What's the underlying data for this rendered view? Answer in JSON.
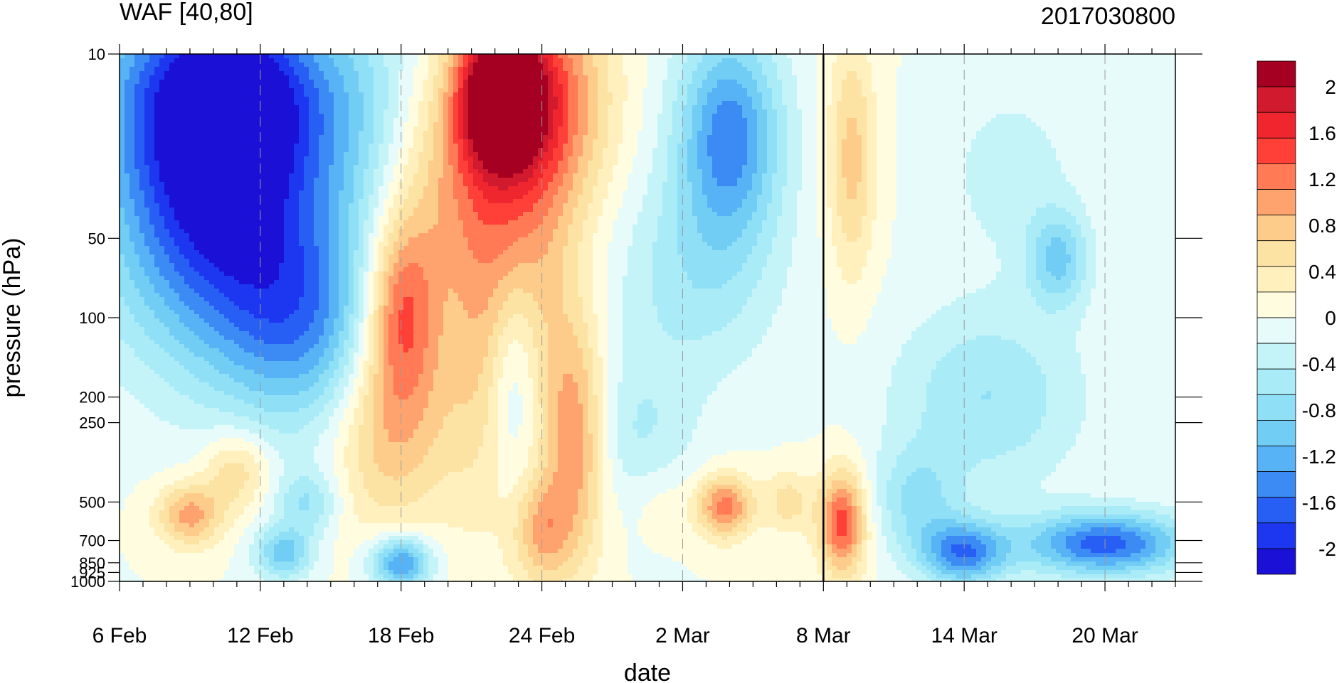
{
  "chart_data": {
    "type": "heatmap",
    "title": "WAF [40,80]",
    "subtitle": "2017030800",
    "xlabel": "date",
    "ylabel": "pressure (hPa)",
    "x_ticks": [
      "6 Feb",
      "12 Feb",
      "18 Feb",
      "24 Feb",
      "2 Mar",
      "8 Mar",
      "14 Mar",
      "20 Mar"
    ],
    "x_tick_days": [
      0,
      6,
      12,
      18,
      24,
      30,
      36,
      42
    ],
    "x_range_days": [
      0,
      45
    ],
    "y_scale": "log",
    "y_ticks": [
      "10",
      "50",
      "100",
      "200",
      "250",
      "500",
      "700",
      "850",
      "925",
      "1000"
    ],
    "y_tick_values": [
      10,
      50,
      100,
      200,
      250,
      500,
      700,
      850,
      925,
      1000
    ],
    "ylim": [
      1000,
      10
    ],
    "marker_day": 30,
    "colorbar": {
      "levels": [
        -2,
        -1.8,
        -1.6,
        -1.4,
        -1.2,
        -1,
        -0.8,
        -0.6,
        -0.4,
        -0.2,
        0,
        0.2,
        0.4,
        0.6,
        0.8,
        1,
        1.2,
        1.4,
        1.6,
        1.8,
        2
      ],
      "labels": [
        "2",
        "1.6",
        "1.2",
        "0.8",
        "0.4",
        "0",
        "-0.4",
        "-0.8",
        "-1.2",
        "-1.6",
        "-2"
      ],
      "label_values": [
        2,
        1.6,
        1.2,
        0.8,
        0.4,
        0,
        -0.4,
        -0.8,
        -1.2,
        -1.6,
        -2
      ],
      "colors_top_to_bottom": [
        "#a50021",
        "#d21a2e",
        "#f0262e",
        "#ff4038",
        "#ff7a55",
        "#ffa36e",
        "#fdcc8a",
        "#fce2a3",
        "#fff0bd",
        "#fffce0",
        "#e8fbfb",
        "#c4f4f8",
        "#a9ebf7",
        "#8fdff6",
        "#72cdf4",
        "#57b2f6",
        "#3c8bf4",
        "#275ef3",
        "#1d37f0",
        "#1a10d6"
      ]
    },
    "contour_blobs": [
      {
        "day": 4.0,
        "p": 22,
        "value": -1.4,
        "spread_days": 4.5,
        "spread_logp": 0.55
      },
      {
        "day": 4.6,
        "p": 60,
        "value": -0.9,
        "spread_days": 5.0,
        "spread_logp": 0.5
      },
      {
        "day": 2.5,
        "p": 12,
        "value": -0.7,
        "spread_days": 4.0,
        "spread_logp": 0.4
      },
      {
        "day": 8.0,
        "p": 110,
        "value": -0.9,
        "spread_days": 3.5,
        "spread_logp": 0.4
      },
      {
        "day": 6.0,
        "p": 14,
        "value": -0.8,
        "spread_days": 3.0,
        "spread_logp": 0.35
      },
      {
        "day": 10.0,
        "p": 15,
        "value": -0.5,
        "spread_days": 2.5,
        "spread_logp": 0.45
      },
      {
        "day": 16.5,
        "p": 80,
        "value": 1.1,
        "spread_days": 2.5,
        "spread_logp": 0.75
      },
      {
        "day": 18.5,
        "p": 15,
        "value": 1.0,
        "spread_days": 2.5,
        "spread_logp": 0.45
      },
      {
        "day": 12.0,
        "p": 90,
        "value": 1.2,
        "spread_days": 1.6,
        "spread_logp": 0.35
      },
      {
        "day": 11.5,
        "p": 250,
        "value": 0.8,
        "spread_days": 2.5,
        "spread_logp": 0.4
      },
      {
        "day": 16.2,
        "p": 14,
        "value": 2.2,
        "spread_days": 1.8,
        "spread_logp": 0.28
      },
      {
        "day": 13.8,
        "p": 30,
        "value": 0.5,
        "spread_days": 2.5,
        "spread_logp": 0.4
      },
      {
        "day": 26.0,
        "p": 20,
        "value": -1.3,
        "spread_days": 2.2,
        "spread_logp": 0.4
      },
      {
        "day": 24.5,
        "p": 70,
        "value": -0.5,
        "spread_days": 3.5,
        "spread_logp": 0.4
      },
      {
        "day": 22.0,
        "p": 280,
        "value": -0.4,
        "spread_days": 2.5,
        "spread_logp": 0.3
      },
      {
        "day": 16.8,
        "p": 160,
        "value": -0.9,
        "spread_days": 1.2,
        "spread_logp": 0.45
      },
      {
        "day": 19.5,
        "p": 300,
        "value": 0.9,
        "spread_days": 1.3,
        "spread_logp": 0.45
      },
      {
        "day": 18.0,
        "p": 650,
        "value": 0.7,
        "spread_days": 1.2,
        "spread_logp": 0.2
      },
      {
        "day": 25.8,
        "p": 520,
        "value": 1.1,
        "spread_days": 1.2,
        "spread_logp": 0.12
      },
      {
        "day": 23.0,
        "p": 500,
        "value": 0.2,
        "spread_days": 1.5,
        "spread_logp": 0.15
      },
      {
        "day": 31.2,
        "p": 25,
        "value": 0.7,
        "spread_days": 1.0,
        "spread_logp": 0.45
      },
      {
        "day": 30.8,
        "p": 600,
        "value": 1.3,
        "spread_days": 1.0,
        "spread_logp": 0.2
      },
      {
        "day": 28.5,
        "p": 500,
        "value": 0.5,
        "spread_days": 1.0,
        "spread_logp": 0.12
      },
      {
        "day": 3.0,
        "p": 560,
        "value": 0.9,
        "spread_days": 1.4,
        "spread_logp": 0.12
      },
      {
        "day": 5.0,
        "p": 380,
        "value": 0.6,
        "spread_days": 1.4,
        "spread_logp": 0.15
      },
      {
        "day": 12.0,
        "p": 850,
        "value": -1.3,
        "spread_days": 1.3,
        "spread_logp": 0.1
      },
      {
        "day": 7.0,
        "p": 780,
        "value": -0.9,
        "spread_days": 1.2,
        "spread_logp": 0.1
      },
      {
        "day": 8.0,
        "p": 500,
        "value": -0.6,
        "spread_days": 1.3,
        "spread_logp": 0.12
      },
      {
        "day": 38.0,
        "p": 28,
        "value": -0.3,
        "spread_days": 3.0,
        "spread_logp": 0.35
      },
      {
        "day": 40.0,
        "p": 60,
        "value": -0.8,
        "spread_days": 1.3,
        "spread_logp": 0.18
      },
      {
        "day": 37.0,
        "p": 200,
        "value": -0.6,
        "spread_days": 4.0,
        "spread_logp": 0.35
      },
      {
        "day": 42.0,
        "p": 720,
        "value": -1.5,
        "spread_days": 3.5,
        "spread_logp": 0.12
      },
      {
        "day": 36.0,
        "p": 780,
        "value": -1.3,
        "spread_days": 1.8,
        "spread_logp": 0.12
      },
      {
        "day": 34.0,
        "p": 500,
        "value": -0.6,
        "spread_days": 1.8,
        "spread_logp": 0.2
      }
    ]
  }
}
